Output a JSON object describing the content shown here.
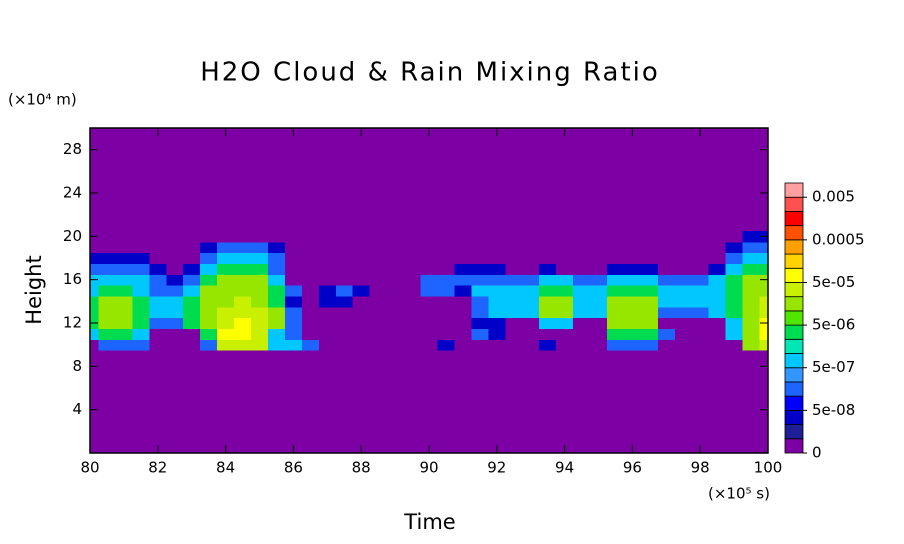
{
  "chart_data": {
    "type": "contour",
    "title": "H2O Cloud & Rain Mixing Ratio",
    "x_label": "Time",
    "y_label": "Height",
    "x_unit_label": "(×10⁵ s)",
    "y_unit_label": "(×10⁴ m)",
    "xlim": [
      80,
      100
    ],
    "xticks": [
      80,
      82,
      84,
      86,
      88,
      90,
      92,
      94,
      96,
      98,
      100
    ],
    "ylim": [
      0,
      30
    ],
    "yticks": [
      4,
      8,
      12,
      16,
      20,
      24,
      28
    ],
    "x": [
      80,
      80.5,
      81,
      81.5,
      82,
      82.5,
      83,
      83.5,
      84,
      84.5,
      85,
      85.5,
      86,
      86.5,
      87,
      87.5,
      88,
      88.5,
      89,
      89.5,
      90,
      90.5,
      91,
      91.5,
      92,
      92.5,
      93,
      93.5,
      94,
      94.5,
      95,
      95.5,
      96,
      96.5,
      97,
      97.5,
      98,
      98.5,
      99,
      99.5,
      100
    ],
    "y": [
      10,
      11,
      12,
      13,
      14,
      15,
      16,
      17,
      18,
      19,
      20
    ],
    "z": [
      [
        0,
        1e-07,
        1e-07,
        1e-07,
        0,
        0,
        0,
        1e-07,
        2e-05,
        2e-05,
        2e-05,
        5e-07,
        5e-07,
        1e-07,
        0,
        0,
        0,
        0,
        0,
        0,
        0,
        2e-08,
        0,
        0,
        0,
        0,
        0,
        2e-08,
        0,
        0,
        0,
        1e-07,
        1e-07,
        1e-07,
        0,
        0,
        0,
        0,
        0,
        1e-05,
        2e-05
      ],
      [
        5e-07,
        2e-06,
        2e-06,
        5e-07,
        0,
        0,
        0,
        2e-06,
        5e-05,
        5e-05,
        2e-05,
        5e-07,
        1e-07,
        0,
        0,
        0,
        0,
        0,
        0,
        0,
        0,
        0,
        0,
        1e-07,
        2e-08,
        0,
        0,
        0,
        0,
        0,
        0,
        2e-06,
        2e-06,
        2e-06,
        1e-07,
        0,
        0,
        0,
        5e-07,
        1e-05,
        5e-05
      ],
      [
        2e-06,
        1e-05,
        1e-05,
        2e-06,
        1e-07,
        1e-07,
        2e-06,
        1e-05,
        2e-05,
        5e-05,
        2e-05,
        1e-05,
        1e-07,
        0,
        0,
        0,
        0,
        0,
        0,
        0,
        0,
        0,
        0,
        2e-08,
        2e-08,
        0,
        0,
        5e-07,
        5e-07,
        0,
        0,
        1e-05,
        1e-05,
        1e-05,
        0,
        0,
        0,
        0,
        5e-07,
        1e-05,
        5e-05
      ],
      [
        2e-06,
        1e-05,
        1e-05,
        2e-06,
        5e-07,
        5e-07,
        2e-06,
        1e-05,
        2e-05,
        2e-05,
        2e-05,
        1e-05,
        1e-07,
        0,
        0,
        0,
        0,
        0,
        0,
        0,
        0,
        0,
        0,
        1e-07,
        5e-07,
        5e-07,
        5e-07,
        1e-05,
        1e-05,
        5e-07,
        5e-07,
        1e-05,
        1e-05,
        1e-05,
        1e-07,
        1e-07,
        1e-07,
        5e-07,
        2e-06,
        1e-05,
        2e-05
      ],
      [
        2e-06,
        1e-05,
        1e-05,
        2e-06,
        5e-07,
        5e-07,
        2e-06,
        1e-05,
        1e-05,
        2e-05,
        1e-05,
        2e-06,
        2e-08,
        0,
        2e-08,
        2e-08,
        0,
        0,
        0,
        0,
        0,
        0,
        0,
        1e-07,
        5e-07,
        5e-07,
        5e-07,
        1e-05,
        1e-05,
        5e-07,
        5e-07,
        1e-05,
        1e-05,
        1e-05,
        5e-07,
        5e-07,
        5e-07,
        5e-07,
        2e-06,
        1e-05,
        2e-05
      ],
      [
        5e-07,
        2e-06,
        2e-06,
        5e-07,
        1e-07,
        1e-07,
        5e-07,
        1e-05,
        1e-05,
        1e-05,
        1e-05,
        2e-06,
        1e-07,
        0,
        2e-08,
        1e-07,
        2e-08,
        0,
        0,
        0,
        1e-07,
        1e-07,
        2e-08,
        5e-07,
        5e-07,
        5e-07,
        5e-07,
        2e-06,
        2e-06,
        5e-07,
        5e-07,
        2e-06,
        2e-06,
        2e-06,
        5e-07,
        5e-07,
        5e-07,
        5e-07,
        2e-06,
        1e-05,
        1e-05
      ],
      [
        5e-07,
        5e-07,
        5e-07,
        5e-07,
        1e-07,
        2e-08,
        1e-07,
        2e-06,
        1e-05,
        1e-05,
        1e-05,
        5e-07,
        0,
        0,
        0,
        0,
        0,
        0,
        0,
        0,
        1e-07,
        1e-07,
        1e-07,
        1e-07,
        1e-07,
        1e-07,
        1e-07,
        5e-07,
        5e-07,
        1e-07,
        1e-07,
        5e-07,
        5e-07,
        5e-07,
        1e-07,
        1e-07,
        1e-07,
        5e-07,
        2e-06,
        1e-05,
        1e-05
      ],
      [
        1e-07,
        1e-07,
        1e-07,
        1e-07,
        2e-08,
        0,
        2e-08,
        5e-07,
        2e-06,
        2e-06,
        2e-06,
        1e-07,
        0,
        0,
        0,
        0,
        0,
        0,
        0,
        0,
        0,
        0,
        2e-08,
        2e-08,
        2e-08,
        0,
        0,
        2e-08,
        0,
        0,
        0,
        2e-08,
        2e-08,
        2e-08,
        0,
        0,
        0,
        2e-08,
        5e-07,
        2e-06,
        2e-06
      ],
      [
        2e-08,
        2e-08,
        2e-08,
        2e-08,
        0,
        0,
        0,
        1e-07,
        5e-07,
        5e-07,
        5e-07,
        1e-07,
        0,
        0,
        0,
        0,
        0,
        0,
        0,
        0,
        0,
        0,
        0,
        0,
        0,
        0,
        0,
        0,
        0,
        0,
        0,
        0,
        0,
        0,
        0,
        0,
        0,
        0,
        1e-07,
        5e-07,
        5e-07
      ],
      [
        0,
        0,
        0,
        0,
        0,
        0,
        0,
        2e-08,
        1e-07,
        1e-07,
        1e-07,
        2e-08,
        0,
        0,
        0,
        0,
        0,
        0,
        0,
        0,
        0,
        0,
        0,
        0,
        0,
        0,
        0,
        0,
        0,
        0,
        0,
        0,
        0,
        0,
        0,
        0,
        0,
        0,
        2e-08,
        1e-07,
        1e-07
      ],
      [
        0,
        0,
        0,
        0,
        0,
        0,
        0,
        0,
        0,
        0,
        0,
        0,
        0,
        0,
        0,
        0,
        0,
        0,
        0,
        0,
        0,
        0,
        0,
        0,
        0,
        0,
        0,
        0,
        0,
        0,
        0,
        0,
        0,
        0,
        0,
        0,
        0,
        0,
        0,
        2e-08,
        2e-08
      ]
    ],
    "colorbar": {
      "levels": [
        0,
        1e-08,
        2e-08,
        5e-08,
        1e-07,
        2e-07,
        5e-07,
        1e-06,
        2e-06,
        5e-06,
        1e-05,
        2e-05,
        5e-05,
        0.0001,
        0.0002,
        0.0005,
        0.001,
        0.002,
        0.005
      ],
      "colors": [
        "#7d00a5",
        "#1e1e96",
        "#0000c8",
        "#0000ff",
        "#1e64ff",
        "#3296ff",
        "#00c8ff",
        "#00e6b4",
        "#00dc50",
        "#50e600",
        "#96e600",
        "#c8f000",
        "#ffff00",
        "#ffd200",
        "#ffa000",
        "#ff5000",
        "#ff0000",
        "#ff5050",
        "#ffa0a0"
      ],
      "ticks": [
        0,
        {
          "value": 5e-08,
          "label": "5e-08"
        },
        {
          "value": 5e-07,
          "label": "5e-07"
        },
        {
          "value": 5e-06,
          "label": "5e-06"
        },
        {
          "value": 5e-05,
          "label": "5e-05"
        },
        0.0005,
        0.005
      ]
    }
  }
}
